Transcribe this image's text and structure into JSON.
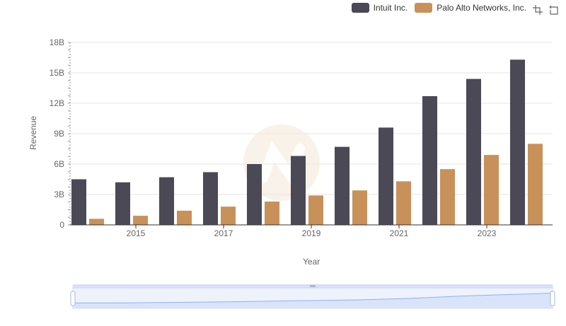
{
  "legend": {
    "items": [
      {
        "label": "Intuit Inc.",
        "color": "#4a4955"
      },
      {
        "label": "Palo Alto Networks, Inc.",
        "color": "#c8915a"
      }
    ]
  },
  "toolbox": {
    "icons": [
      "zoom-icon",
      "restore-icon"
    ]
  },
  "colors": {
    "grid": "#e6e6e6",
    "axis": "#333333",
    "zoom_fill": "#d6e2fb",
    "zoom_line": "#8fb0f7"
  },
  "chart_data": {
    "type": "bar",
    "title": "",
    "xlabel": "Year",
    "ylabel": "Revenue",
    "categories": [
      "2014",
      "2015",
      "2016",
      "2017",
      "2018",
      "2019",
      "2020",
      "2021",
      "2022",
      "2023",
      "2024"
    ],
    "x_tick_labels": [
      "2015",
      "2017",
      "2019",
      "2021",
      "2023"
    ],
    "y_tick_labels": [
      "0",
      "3B",
      "6B",
      "9B",
      "12B",
      "15B",
      "18B"
    ],
    "ylim": [
      0,
      18
    ],
    "y_unit": "billions",
    "series": [
      {
        "name": "Intuit Inc.",
        "values": [
          4.5,
          4.2,
          4.7,
          5.2,
          6.0,
          6.8,
          7.7,
          9.6,
          12.7,
          14.4,
          16.3
        ]
      },
      {
        "name": "Palo Alto Networks, Inc.",
        "values": [
          0.6,
          0.9,
          1.4,
          1.8,
          2.3,
          2.9,
          3.4,
          4.3,
          5.5,
          6.9,
          8.0
        ]
      }
    ],
    "legend_position": "top-right",
    "grid": true
  }
}
